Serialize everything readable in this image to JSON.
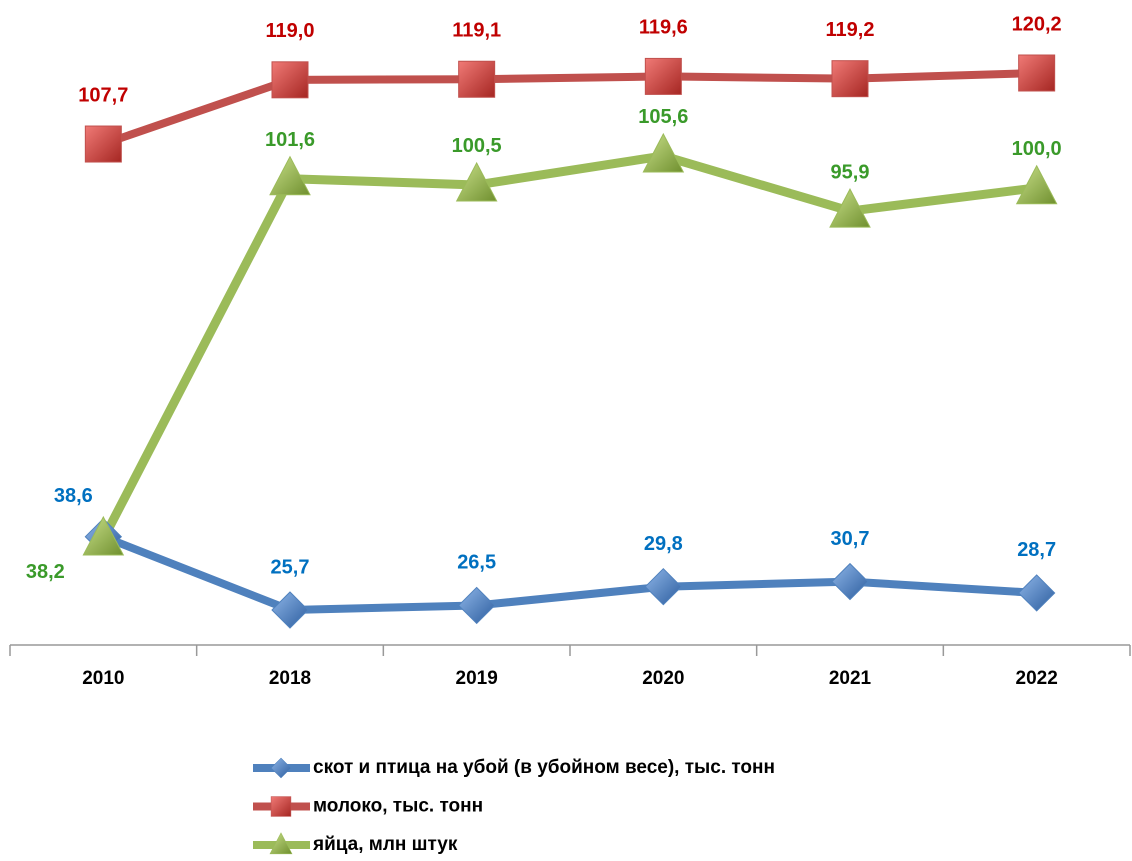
{
  "chart_data": {
    "type": "line",
    "categories": [
      "2010",
      "2018",
      "2019",
      "2020",
      "2021",
      "2022"
    ],
    "series": [
      {
        "name": "скот и птица на убой (в убойном весе), тыс. тонн",
        "color": "#4f81bd",
        "label_color": "#0070c0",
        "marker": "diamond",
        "values": [
          38.6,
          25.7,
          26.5,
          29.8,
          30.7,
          28.7
        ],
        "value_labels": [
          "38,6",
          "25,7",
          "26,5",
          "29,8",
          "30,7",
          "28,7"
        ]
      },
      {
        "name": "молоко, тыс. тонн",
        "color": "#c0504d",
        "label_color": "#c00000",
        "marker": "square",
        "values": [
          107.7,
          119.0,
          119.1,
          119.6,
          119.2,
          120.2
        ],
        "value_labels": [
          "107,7",
          "119,0",
          "119,1",
          "119,6",
          "119,2",
          "120,2"
        ]
      },
      {
        "name": "яйца, млн штук",
        "color": "#9bbb59",
        "label_color": "#3a9a2a",
        "marker": "triangle",
        "values": [
          38.2,
          101.6,
          100.5,
          105.6,
          95.9,
          100.0
        ],
        "value_labels": [
          "38,2",
          "101,6",
          "100,5",
          "105,6",
          "95,9",
          "100,0"
        ]
      }
    ]
  }
}
